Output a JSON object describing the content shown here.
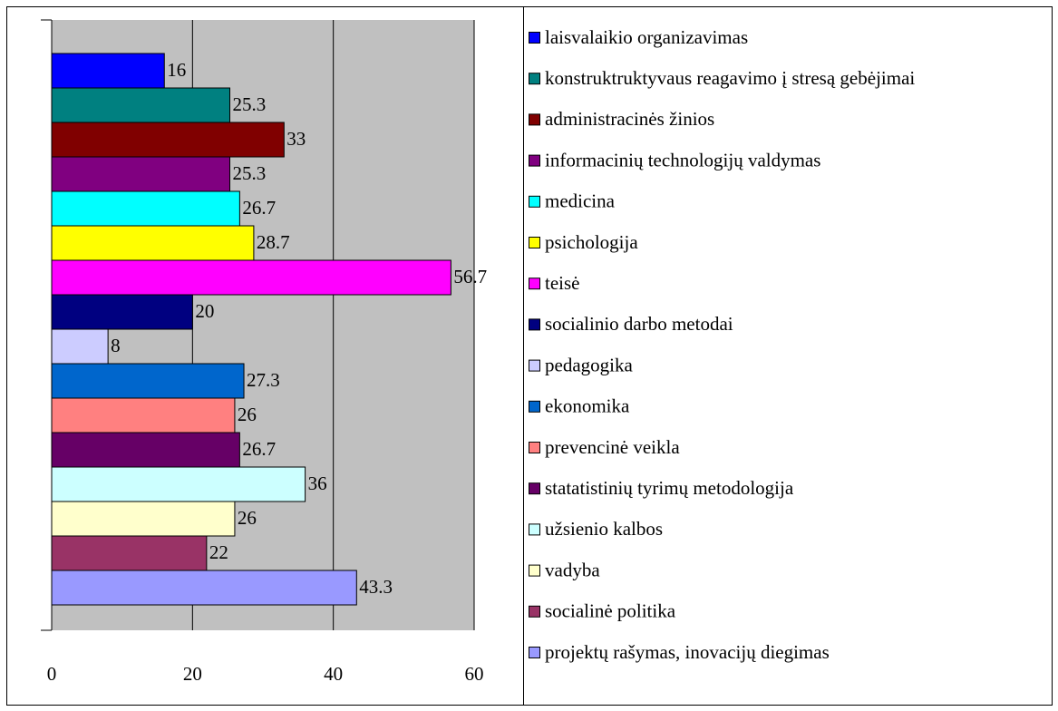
{
  "chart_data": {
    "type": "bar",
    "orientation": "horizontal",
    "categories": [
      "laisvalaikio organizavimas",
      "konstruktruktyvaus reagavimo į stresą gebėjimai",
      "administracinės žinios",
      "informacinių technologijų valdymas",
      "medicina",
      "psichologija",
      "teisė",
      "socialinio darbo metodai",
      "pedagogika",
      "ekonomika",
      "prevencinė veikla",
      "statatistinių tyrimų metodologija",
      "užsienio kalbos",
      "vadyba",
      "socialinė politika",
      "projektų rašymas, inovacijų diegimas"
    ],
    "values": [
      16,
      25.3,
      33,
      25.3,
      26.7,
      28.7,
      56.7,
      20,
      8,
      27.3,
      26,
      26.7,
      36,
      26,
      22,
      43.3
    ],
    "colors": [
      "#0000ff",
      "#008080",
      "#800000",
      "#800080",
      "#00ffff",
      "#ffff00",
      "#ff00ff",
      "#000080",
      "#ccccff",
      "#0066cc",
      "#ff8080",
      "#660066",
      "#ccffff",
      "#ffffcc",
      "#993366",
      "#9999ff"
    ],
    "xlim": [
      0,
      60
    ],
    "xticks": [
      0,
      20,
      40,
      60
    ],
    "grid": true,
    "legend": "right"
  }
}
